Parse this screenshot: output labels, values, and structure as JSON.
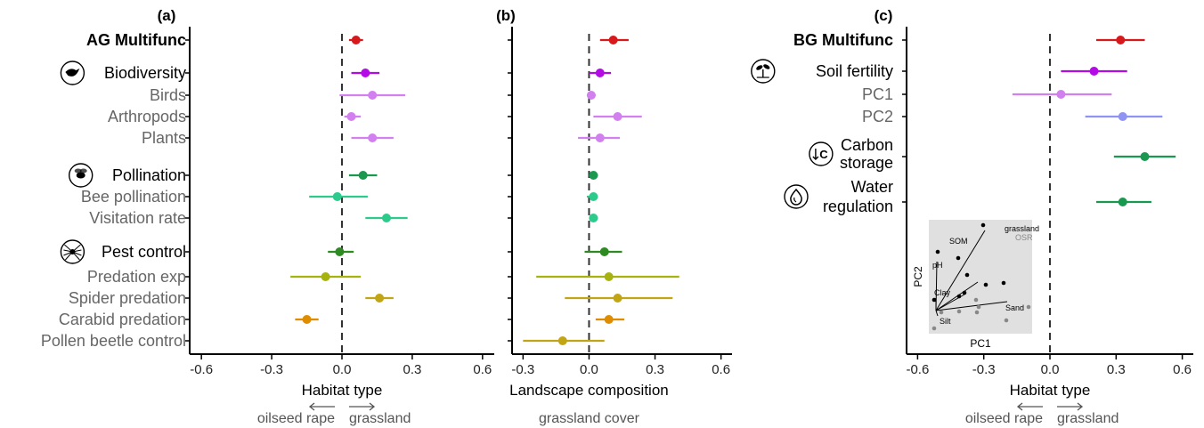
{
  "chart_data": [
    {
      "type": "scatter",
      "subtype": "forest-plot",
      "panel": "(a)",
      "xlabel": "Habitat type",
      "direction_left": "oilseed rape",
      "direction_right": "grassland",
      "xlim": [
        -0.65,
        0.65
      ],
      "xticks": [
        "-0.6",
        "-0.3",
        "0.0",
        "0.3",
        "0.6"
      ],
      "xtick_values": [
        -0.6,
        -0.3,
        0.0,
        0.3,
        0.6
      ],
      "ref_line": 0,
      "rows": [
        {
          "label": "AG Multifunc",
          "bold": true,
          "icon": "",
          "value": 0.06,
          "lo": 0.03,
          "hi": 0.09,
          "color": "#d7191c"
        },
        {
          "label": "Biodiversity",
          "bold": false,
          "main": true,
          "icon": "bird-icon",
          "value": 0.1,
          "lo": 0.04,
          "hi": 0.16,
          "color": "#b40ae6"
        },
        {
          "label": "Birds",
          "value": 0.13,
          "lo": -0.01,
          "hi": 0.27,
          "color": "#d27ff0"
        },
        {
          "label": "Arthropods",
          "value": 0.04,
          "lo": 0.01,
          "hi": 0.08,
          "color": "#d27ff0"
        },
        {
          "label": "Plants",
          "value": 0.13,
          "lo": 0.04,
          "hi": 0.22,
          "color": "#d27ff0"
        },
        {
          "label": "Pollination",
          "main": true,
          "icon": "bee-icon",
          "value": 0.09,
          "lo": 0.03,
          "hi": 0.15,
          "color": "#1a9850"
        },
        {
          "label": "Bee pollination",
          "value": -0.02,
          "lo": -0.14,
          "hi": 0.11,
          "color": "#2dcb8b"
        },
        {
          "label": "Visitation rate",
          "value": 0.19,
          "lo": 0.1,
          "hi": 0.28,
          "color": "#2dcb8b"
        },
        {
          "label": "Pest control",
          "main": true,
          "icon": "spider-icon",
          "value": -0.01,
          "lo": -0.06,
          "hi": 0.05,
          "color": "#2e8b22"
        },
        {
          "label": "Predation exp",
          "value": -0.07,
          "lo": -0.22,
          "hi": 0.08,
          "color": "#a6b30f"
        },
        {
          "label": "Spider predation",
          "value": 0.16,
          "lo": 0.1,
          "hi": 0.22,
          "color": "#c2a514"
        },
        {
          "label": "Carabid predation",
          "value": -0.15,
          "lo": -0.2,
          "hi": -0.1,
          "color": "#e08c00"
        },
        {
          "label": "Pollen beetle control",
          "value": null,
          "lo": null,
          "hi": null,
          "color": "#c2a514"
        }
      ]
    },
    {
      "type": "scatter",
      "subtype": "forest-plot",
      "panel": "(b)",
      "xlabel": "Landscape composition",
      "direction_left": "",
      "direction_right": "grassland cover",
      "xlim": [
        -0.35,
        0.65
      ],
      "xticks": [
        "-0.3",
        "0.0",
        "0.3",
        "0.6"
      ],
      "xtick_values": [
        -0.3,
        0.0,
        0.3,
        0.6
      ],
      "ref_line": 0,
      "rows": [
        {
          "label": "AG Multifunc",
          "value": 0.11,
          "lo": 0.05,
          "hi": 0.18,
          "color": "#d7191c"
        },
        {
          "label": "Biodiversity",
          "value": 0.05,
          "lo": 0.0,
          "hi": 0.1,
          "color": "#b40ae6"
        },
        {
          "label": "Birds",
          "value": 0.01,
          "lo": -0.01,
          "hi": 0.03,
          "color": "#d27ff0"
        },
        {
          "label": "Arthropods",
          "value": 0.13,
          "lo": 0.02,
          "hi": 0.24,
          "color": "#d27ff0"
        },
        {
          "label": "Plants",
          "value": 0.05,
          "lo": -0.05,
          "hi": 0.14,
          "color": "#d27ff0"
        },
        {
          "label": "Pollination",
          "value": 0.02,
          "lo": 0.0,
          "hi": 0.04,
          "color": "#1a9850"
        },
        {
          "label": "Bee pollination",
          "value": 0.02,
          "lo": -0.01,
          "hi": 0.04,
          "color": "#2dcb8b"
        },
        {
          "label": "Visitation rate",
          "value": 0.02,
          "lo": 0.0,
          "hi": 0.04,
          "color": "#2dcb8b"
        },
        {
          "label": "Pest control",
          "value": 0.07,
          "lo": -0.02,
          "hi": 0.15,
          "color": "#2e8b22"
        },
        {
          "label": "Predation exp",
          "value": 0.09,
          "lo": -0.24,
          "hi": 0.41,
          "color": "#a6b30f"
        },
        {
          "label": "Spider predation",
          "value": 0.13,
          "lo": -0.11,
          "hi": 0.38,
          "color": "#c2a514"
        },
        {
          "label": "Carabid predation",
          "value": 0.09,
          "lo": 0.03,
          "hi": 0.16,
          "color": "#e08c00"
        },
        {
          "label": "Pollen beetle control",
          "value": -0.12,
          "lo": -0.3,
          "hi": 0.07,
          "color": "#c2a514"
        }
      ]
    },
    {
      "type": "scatter",
      "subtype": "forest-plot",
      "panel": "(c)",
      "xlabel": "Habitat type",
      "direction_left": "oilseed rape",
      "direction_right": "grassland",
      "xlim": [
        -0.65,
        0.65
      ],
      "xticks": [
        "-0.6",
        "-0.3",
        "0.0",
        "0.3",
        "0.6"
      ],
      "xtick_values": [
        -0.6,
        -0.3,
        0.0,
        0.3,
        0.6
      ],
      "ref_line": 0,
      "rows": [
        {
          "label": "BG Multifunc",
          "bold": true,
          "value": 0.32,
          "lo": 0.21,
          "hi": 0.43,
          "color": "#d7191c"
        },
        {
          "label": "Soil fertility",
          "main": true,
          "icon": "sprout-icon",
          "value": 0.2,
          "lo": 0.05,
          "hi": 0.35,
          "color": "#b40ae6"
        },
        {
          "label": "PC1",
          "value": 0.05,
          "lo": -0.17,
          "hi": 0.28,
          "color": "#d27ff0"
        },
        {
          "label": "PC2",
          "value": 0.33,
          "lo": 0.16,
          "hi": 0.51,
          "color": "#8f93f2"
        },
        {
          "label": "Carbon\nstorage",
          "main": true,
          "icon": "carbon-icon",
          "value": 0.43,
          "lo": 0.29,
          "hi": 0.57,
          "color": "#1a9850"
        },
        {
          "label": "Water\nregulation",
          "main": true,
          "icon": "water-drop-icon",
          "value": 0.33,
          "lo": 0.21,
          "hi": 0.46,
          "color": "#1a9850"
        }
      ]
    }
  ],
  "inset": {
    "xlabel": "PC1",
    "ylabel": "PC2",
    "legend_grassland": "grassland",
    "legend_osr": "OSR",
    "vector_labels": [
      "SOM",
      "pH",
      "Clay",
      "Silt",
      "Sand"
    ],
    "grassland_color": "#000000",
    "osr_color": "#888888",
    "background": "#e0e0e0"
  }
}
